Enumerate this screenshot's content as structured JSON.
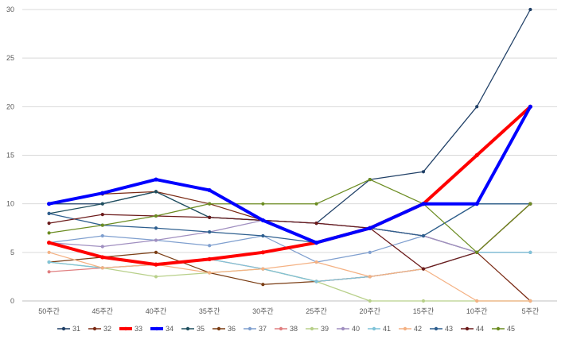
{
  "chart_data": {
    "type": "line",
    "title": "",
    "xlabel": "",
    "ylabel": "",
    "ylim": [
      0,
      30
    ],
    "yticks": [
      "0",
      "5",
      "10",
      "15",
      "20",
      "25",
      "30"
    ],
    "categories": [
      "50주간",
      "45주간",
      "40주간",
      "35주간",
      "30주간",
      "25주간",
      "20주간",
      "15주간",
      "10주간",
      "5주간"
    ],
    "grid": true,
    "legend_position": "bottom",
    "series": [
      {
        "name": "31",
        "color": "#1f3f66",
        "emphasis": false,
        "values": [
          10,
          10,
          11.25,
          8.6,
          8.3,
          8,
          12.5,
          13.3,
          20,
          30
        ]
      },
      {
        "name": "32",
        "color": "#7a2a14",
        "emphasis": false,
        "values": [
          10,
          11,
          11.25,
          10,
          8.3,
          6,
          7.5,
          6.7,
          5,
          0
        ]
      },
      {
        "name": "33",
        "color": "#ff0000",
        "emphasis": true,
        "values": [
          6,
          4.5,
          3.75,
          4.3,
          5,
          6,
          7.5,
          10,
          15,
          20
        ]
      },
      {
        "name": "34",
        "color": "#0000ff",
        "emphasis": true,
        "values": [
          10,
          11.1,
          12.5,
          11.4,
          8.3,
          6,
          7.5,
          10,
          10,
          20
        ]
      },
      {
        "name": "35",
        "color": "#1f4f5f",
        "emphasis": false,
        "values": [
          9,
          10,
          11.25,
          8.6,
          8.3,
          8,
          7.5,
          6.7,
          10,
          10
        ]
      },
      {
        "name": "36",
        "color": "#7a3d14",
        "emphasis": false,
        "values": [
          4,
          4.5,
          5,
          2.9,
          1.7,
          2,
          2.5,
          3.3,
          5,
          10
        ]
      },
      {
        "name": "37",
        "color": "#7f9fcf",
        "emphasis": false,
        "values": [
          6,
          6.7,
          6.25,
          5.7,
          6.7,
          4,
          5,
          6.7,
          5,
          5
        ]
      },
      {
        "name": "38",
        "color": "#e07f80",
        "emphasis": false,
        "values": [
          3,
          3.4,
          3.75,
          4.3,
          3.3,
          2,
          2.5,
          3.3,
          5,
          10
        ]
      },
      {
        "name": "39",
        "color": "#b8d08a",
        "emphasis": false,
        "values": [
          4,
          3.4,
          2.5,
          2.9,
          3.3,
          2,
          0,
          0,
          0,
          0
        ]
      },
      {
        "name": "40",
        "color": "#a08fc0",
        "emphasis": false,
        "values": [
          6,
          5.6,
          6.25,
          7.1,
          8.3,
          8,
          7.5,
          6.7,
          5,
          5
        ]
      },
      {
        "name": "41",
        "color": "#7fc3d8",
        "emphasis": false,
        "values": [
          4,
          3.4,
          3.75,
          4.3,
          3.3,
          2,
          2.5,
          3.3,
          5,
          5
        ]
      },
      {
        "name": "42",
        "color": "#f4b183",
        "emphasis": false,
        "values": [
          5,
          3.4,
          3.75,
          2.9,
          3.3,
          4,
          2.5,
          3.3,
          0,
          0
        ]
      },
      {
        "name": "43",
        "color": "#2e5f8f",
        "emphasis": false,
        "values": [
          9,
          7.8,
          7.5,
          7.1,
          6.7,
          6,
          7.5,
          6.7,
          10,
          10
        ]
      },
      {
        "name": "44",
        "color": "#6b1a1a",
        "emphasis": false,
        "values": [
          8,
          8.9,
          8.75,
          8.6,
          8.3,
          8,
          7.5,
          3.3,
          5,
          10
        ]
      },
      {
        "name": "45",
        "color": "#6b8c21",
        "emphasis": false,
        "values": [
          7,
          7.8,
          8.75,
          10,
          10,
          10,
          12.5,
          10,
          5,
          10
        ]
      }
    ]
  }
}
